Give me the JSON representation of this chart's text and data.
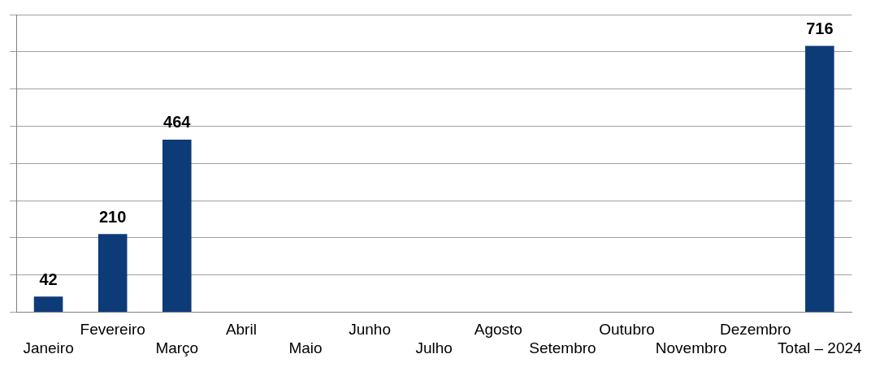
{
  "chart_data": {
    "type": "bar",
    "categories": [
      "Janeiro",
      "Fevereiro",
      "Março",
      "Abril",
      "Maio",
      "Junho",
      "Julho",
      "Agosto",
      "Setembro",
      "Outubro",
      "Novembro",
      "Dezembro",
      "Total – 2024"
    ],
    "values": [
      42,
      210,
      464,
      null,
      null,
      null,
      null,
      null,
      null,
      null,
      null,
      null,
      716
    ],
    "color": "#0d3b78",
    "ylim": [
      0,
      800
    ],
    "yticks": [
      {
        "value": 0,
        "label": null
      },
      {
        "value": 100,
        "label": null
      },
      {
        "value": 200,
        "label": null
      },
      {
        "value": 300,
        "label": null
      },
      {
        "value": 400,
        "label": null
      },
      {
        "value": 500,
        "label": null
      },
      {
        "value": 600,
        "label": null
      },
      {
        "value": 700,
        "label": null
      },
      {
        "value": 800,
        "label": null
      }
    ],
    "grid": "y",
    "legend": false,
    "tick_labels": "x",
    "data_labels": true
  }
}
